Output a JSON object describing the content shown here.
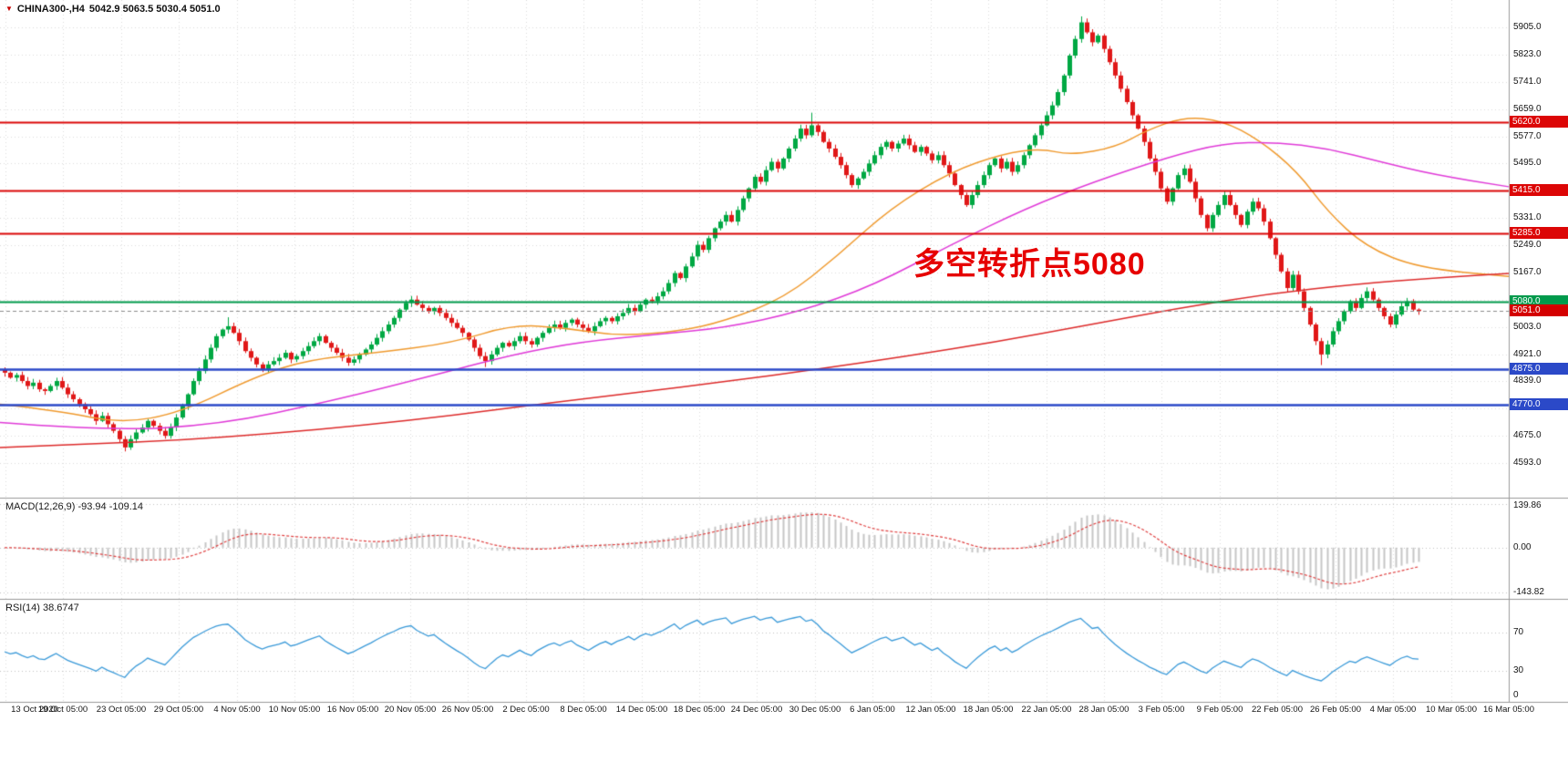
{
  "window": {
    "symbol_label": "CHINA300-,H4",
    "ohlc_label": "5042.9 5063.5 5030.4 5051.0"
  },
  "icons": {
    "symbol_marker": "▼"
  },
  "annotation": {
    "text": "多空转折点5080",
    "color": "#e60000"
  },
  "indicator_labels": {
    "macd": "MACD(12,26,9) -93.94 -109.14",
    "rsi": "RSI(14) 38.6747"
  },
  "chart_data": {
    "type": "candlestick",
    "symbol": "CHINA300-",
    "timeframe": "H4",
    "current_ohlc": {
      "open": 5042.9,
      "high": 5063.5,
      "low": 5030.4,
      "close": 5051.0
    },
    "y_axis": {
      "min": 4593,
      "max": 5905,
      "tick_step": 82,
      "ticks": [
        {
          "text": "5905.0",
          "value": 5905
        },
        {
          "text": "5823.0",
          "value": 5823
        },
        {
          "text": "5741.0",
          "value": 5741
        },
        {
          "text": "5659.0",
          "value": 5659
        },
        {
          "text": "5577.0",
          "value": 5577
        },
        {
          "text": "5495.0",
          "value": 5495
        },
        {
          "text": "5331.0",
          "value": 5331
        },
        {
          "text": "5249.0",
          "value": 5249
        },
        {
          "text": "5167.0",
          "value": 5167
        },
        {
          "text": "5003.0",
          "value": 5003
        },
        {
          "text": "4921.0",
          "value": 4921
        },
        {
          "text": "4839.0",
          "value": 4839
        },
        {
          "text": "4675.0",
          "value": 4675
        },
        {
          "text": "4593.0",
          "value": 4593
        }
      ]
    },
    "x_labels": [
      "13 Oct 2020",
      "19 Oct 05:00",
      "23 Oct 05:00",
      "29 Oct 05:00",
      "4 Nov 05:00",
      "10 Nov 05:00",
      "16 Nov 05:00",
      "20 Nov 05:00",
      "26 Nov 05:00",
      "2 Dec 05:00",
      "8 Dec 05:00",
      "14 Dec 05:00",
      "18 Dec 05:00",
      "24 Dec 05:00",
      "30 Dec 05:00",
      "6 Jan 05:00",
      "12 Jan 05:00",
      "18 Jan 05:00",
      "22 Jan 05:00",
      "28 Jan 05:00",
      "3 Feb 05:00",
      "9 Feb 05:00",
      "22 Feb 05:00",
      "26 Feb 05:00",
      "4 Mar 05:00",
      "10 Mar 05:00",
      "16 Mar 05:00"
    ],
    "closes": [
      4865,
      4850,
      4858,
      4840,
      4825,
      4835,
      4815,
      4810,
      4825,
      4840,
      4820,
      4800,
      4785,
      4770,
      4755,
      4740,
      4720,
      4735,
      4710,
      4690,
      4665,
      4640,
      4665,
      4685,
      4700,
      4720,
      4705,
      4690,
      4675,
      4700,
      4730,
      4765,
      4800,
      4840,
      4870,
      4905,
      4940,
      4975,
      4995,
      5005,
      4985,
      4960,
      4930,
      4910,
      4890,
      4875,
      4890,
      4900,
      4910,
      4925,
      4905,
      4915,
      4930,
      4945,
      4960,
      4975,
      4955,
      4940,
      4925,
      4910,
      4895,
      4905,
      4920,
      4935,
      4950,
      4970,
      4990,
      5010,
      5030,
      5055,
      5075,
      5085,
      5070,
      5060,
      5050,
      5060,
      5045,
      5030,
      5015,
      5000,
      4985,
      4965,
      4940,
      4915,
      4900,
      4920,
      4940,
      4955,
      4945,
      4960,
      4975,
      4960,
      4950,
      4970,
      4985,
      5000,
      5010,
      5000,
      5015,
      5025,
      5010,
      5000,
      4990,
      5005,
      5020,
      5030,
      5020,
      5035,
      5045,
      5060,
      5050,
      5070,
      5085,
      5080,
      5095,
      5110,
      5135,
      5165,
      5150,
      5185,
      5215,
      5250,
      5235,
      5270,
      5300,
      5320,
      5340,
      5320,
      5355,
      5390,
      5420,
      5455,
      5440,
      5475,
      5500,
      5480,
      5510,
      5540,
      5570,
      5600,
      5580,
      5610,
      5590,
      5560,
      5540,
      5515,
      5490,
      5460,
      5430,
      5450,
      5470,
      5495,
      5520,
      5545,
      5560,
      5540,
      5555,
      5570,
      5550,
      5530,
      5545,
      5525,
      5505,
      5520,
      5490,
      5465,
      5430,
      5400,
      5370,
      5400,
      5430,
      5460,
      5490,
      5510,
      5480,
      5500,
      5470,
      5490,
      5520,
      5550,
      5580,
      5610,
      5640,
      5670,
      5710,
      5760,
      5820,
      5870,
      5920,
      5890,
      5860,
      5880,
      5840,
      5800,
      5760,
      5720,
      5680,
      5640,
      5600,
      5560,
      5510,
      5470,
      5420,
      5380,
      5420,
      5460,
      5480,
      5440,
      5390,
      5340,
      5300,
      5340,
      5370,
      5400,
      5370,
      5340,
      5310,
      5350,
      5380,
      5360,
      5320,
      5270,
      5220,
      5170,
      5120,
      5160,
      5110,
      5060,
      5010,
      4960,
      4920,
      4950,
      4990,
      5020,
      5050,
      5080,
      5060,
      5090,
      5110,
      5085,
      5060,
      5035,
      5010,
      5040,
      5065,
      5080,
      5055,
      5051
    ],
    "wick_extremes": [
      {
        "index": 21,
        "low": 4628
      },
      {
        "index": 39,
        "high": 5032
      },
      {
        "index": 71,
        "high": 5096
      },
      {
        "index": 84,
        "low": 4882
      },
      {
        "index": 141,
        "high": 5648
      },
      {
        "index": 188,
        "high": 5938
      },
      {
        "index": 230,
        "low": 4888
      }
    ],
    "levels": [
      {
        "label": "5620.0",
        "value": 5620,
        "color": "#dc0606",
        "kind": "resistance"
      },
      {
        "label": "5415.0",
        "value": 5415,
        "color": "#dc0606",
        "kind": "resistance"
      },
      {
        "label": "5285.0",
        "value": 5285,
        "color": "#dc0606",
        "kind": "resistance"
      },
      {
        "label": "5080.0",
        "value": 5080,
        "color": "#009a4c",
        "kind": "pivot"
      },
      {
        "label": "5051.0",
        "value": 5051,
        "color": "#d40000",
        "kind": "current",
        "current": true
      },
      {
        "label": "4875.0",
        "value": 4875,
        "color": "#2b49c8",
        "kind": "support"
      },
      {
        "label": "4770.0",
        "value": 4770,
        "color": "#2b49c8",
        "kind": "support"
      }
    ],
    "moving_averages": [
      {
        "name": "ma-fast-orange",
        "color": "#f09a2e",
        "points": [
          [
            0,
            4770
          ],
          [
            0.04,
            4750
          ],
          [
            0.08,
            4712
          ],
          [
            0.12,
            4745
          ],
          [
            0.17,
            4855
          ],
          [
            0.205,
            4905
          ],
          [
            0.25,
            4925
          ],
          [
            0.3,
            4955
          ],
          [
            0.34,
            5010
          ],
          [
            0.375,
            5000
          ],
          [
            0.41,
            4975
          ],
          [
            0.45,
            4990
          ],
          [
            0.48,
            5020
          ],
          [
            0.52,
            5090
          ],
          [
            0.556,
            5220
          ],
          [
            0.59,
            5360
          ],
          [
            0.63,
            5470
          ],
          [
            0.665,
            5525
          ],
          [
            0.69,
            5540
          ],
          [
            0.71,
            5520
          ],
          [
            0.74,
            5545
          ],
          [
            0.76,
            5595
          ],
          [
            0.785,
            5635
          ],
          [
            0.81,
            5625
          ],
          [
            0.835,
            5565
          ],
          [
            0.86,
            5470
          ],
          [
            0.88,
            5350
          ],
          [
            0.905,
            5245
          ],
          [
            0.94,
            5180
          ],
          [
            1.0,
            5155
          ]
        ]
      },
      {
        "name": "ma-mid-magenta",
        "color": "#e03ad8",
        "points": [
          [
            0,
            4715
          ],
          [
            0.07,
            4690
          ],
          [
            0.145,
            4708
          ],
          [
            0.22,
            4780
          ],
          [
            0.29,
            4860
          ],
          [
            0.34,
            4920
          ],
          [
            0.385,
            4958
          ],
          [
            0.435,
            4980
          ],
          [
            0.48,
            5000
          ],
          [
            0.53,
            5048
          ],
          [
            0.58,
            5130
          ],
          [
            0.63,
            5250
          ],
          [
            0.68,
            5360
          ],
          [
            0.725,
            5440
          ],
          [
            0.775,
            5515
          ],
          [
            0.81,
            5555
          ],
          [
            0.845,
            5560
          ],
          [
            0.88,
            5540
          ],
          [
            0.915,
            5500
          ],
          [
            0.95,
            5462
          ],
          [
            1.0,
            5425
          ]
        ]
      },
      {
        "name": "ma-slow-red",
        "color": "#dd2a2a",
        "points": [
          [
            0,
            4640
          ],
          [
            0.06,
            4650
          ],
          [
            0.12,
            4662
          ],
          [
            0.18,
            4682
          ],
          [
            0.24,
            4706
          ],
          [
            0.3,
            4736
          ],
          [
            0.36,
            4772
          ],
          [
            0.42,
            4804
          ],
          [
            0.48,
            4838
          ],
          [
            0.54,
            4874
          ],
          [
            0.6,
            4914
          ],
          [
            0.66,
            4958
          ],
          [
            0.72,
            5008
          ],
          [
            0.78,
            5058
          ],
          [
            0.84,
            5102
          ],
          [
            0.9,
            5132
          ],
          [
            0.95,
            5150
          ],
          [
            1.0,
            5164
          ]
        ]
      }
    ],
    "macd": {
      "params": "12,26,9",
      "value": -93.94,
      "signal_value": -109.14,
      "axis": [
        {
          "text": "139.86",
          "value": 139.86
        },
        {
          "text": "0.00",
          "value": 0
        },
        {
          "text": "-143.82",
          "value": -143.82
        }
      ]
    },
    "rsi": {
      "period": 14,
      "value": 38.6747,
      "levels": [
        70,
        30
      ],
      "axis": [
        {
          "text": "70",
          "value": 70
        },
        {
          "text": "30",
          "value": 30
        },
        {
          "text": "0",
          "value": 0
        }
      ]
    },
    "colors": {
      "up": "#00a843",
      "down": "#e01818",
      "grid": "#dcdcdc",
      "macd_hist": "#c6c6c6",
      "macd_signal": "#e04040",
      "rsi_line": "#3a9ad9",
      "current_line": "#8c8c8c"
    }
  }
}
